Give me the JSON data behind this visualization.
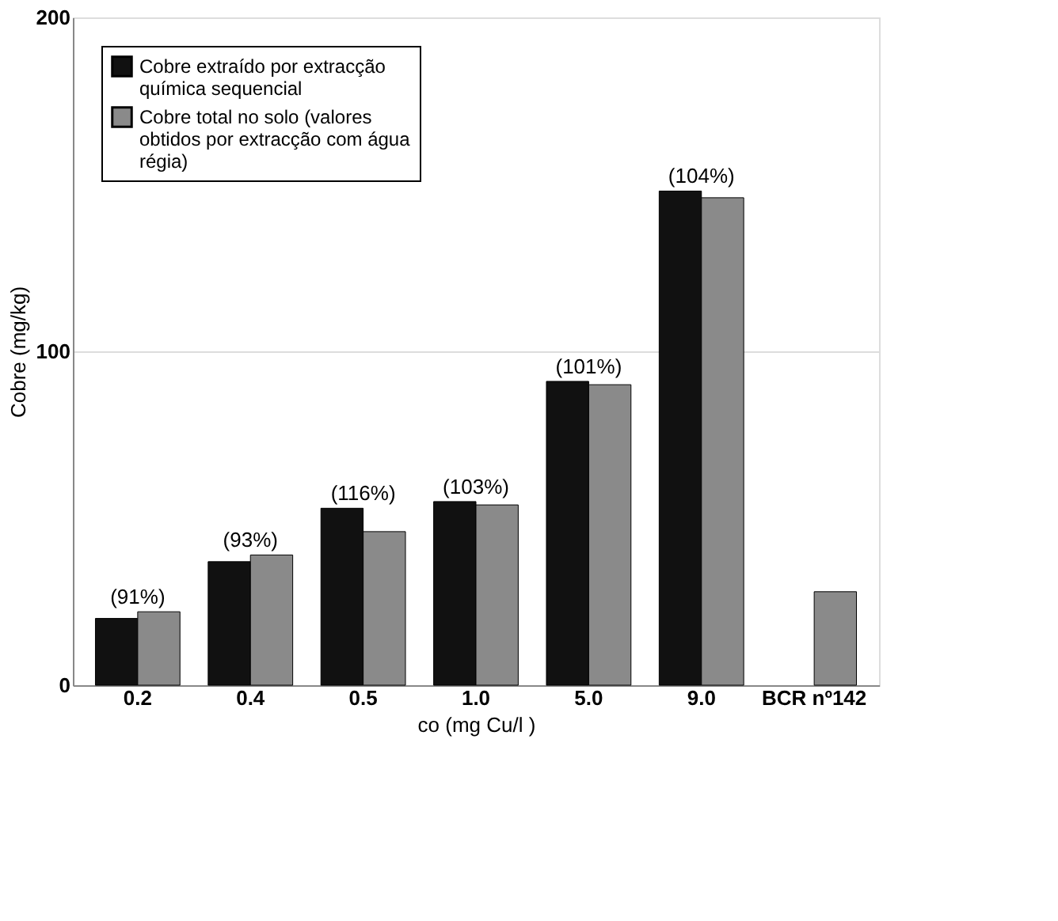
{
  "chart_data": {
    "type": "bar",
    "ylabel": "Cobre (mg/kg)",
    "xlabel": "co (mg Cu/l )",
    "categories": [
      "0.2",
      "0.4",
      "0.5",
      "1.0",
      "5.0",
      "9.0",
      "BCR nº142"
    ],
    "series": [
      {
        "name": "Cobre extraído por extracção química sequencial",
        "color": "#111111",
        "values": [
          20,
          37,
          53,
          55,
          91,
          148,
          null
        ]
      },
      {
        "name": "Cobre total no solo (valores obtidos por extracção com água régia)",
        "color": "#8a8a8a",
        "values": [
          22,
          39,
          46,
          54,
          90,
          146,
          28
        ]
      }
    ],
    "ylim": [
      0,
      200
    ],
    "yticks": [
      0,
      100,
      200
    ],
    "grid": "y",
    "legend": "top left",
    "annotations": [
      {
        "text": "(91%)",
        "x": "0.2",
        "y": 22
      },
      {
        "text": "(93%)",
        "x": "0.4",
        "y": 39
      },
      {
        "text": "(116%)",
        "x": "0.5",
        "y": 53
      },
      {
        "text": "(103%)",
        "x": "1.0",
        "y": 55
      },
      {
        "text": "(101%)",
        "x": "5.0",
        "y": 91
      },
      {
        "text": "(104%)",
        "x": "9.0",
        "y": 148
      }
    ]
  }
}
